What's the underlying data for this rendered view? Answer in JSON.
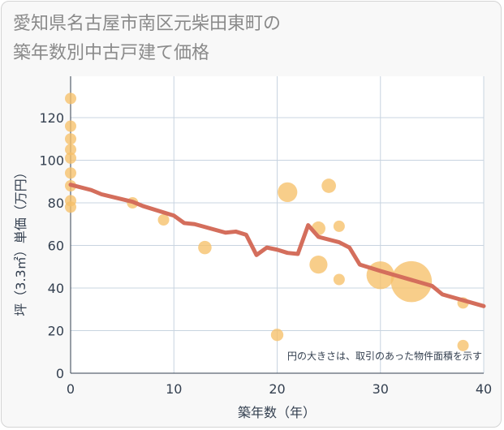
{
  "chart_data": {
    "type": "scatter",
    "title_lines": [
      "愛知県名古屋市南区元柴田東町の",
      "築年数別中古戸建て価格"
    ],
    "xlabel": "築年数（年）",
    "ylabel": "坪（3.3㎡）単価（万円）",
    "xlim": [
      0,
      40
    ],
    "ylim": [
      0,
      135
    ],
    "xticks": [
      0,
      10,
      20,
      30,
      40
    ],
    "yticks": [
      0,
      20,
      40,
      60,
      80,
      100,
      120
    ],
    "grid": true,
    "note": "円の大きさは、取引のあった物件面積を示す",
    "colors": {
      "bubble": "#f6c069",
      "line": "#d46e5c",
      "grid": "#c8d4e0",
      "text": "#333f4f"
    },
    "points": [
      {
        "x": 0,
        "y": 129,
        "size": 1
      },
      {
        "x": 0,
        "y": 116,
        "size": 1
      },
      {
        "x": 0,
        "y": 110,
        "size": 1
      },
      {
        "x": 0,
        "y": 105,
        "size": 1
      },
      {
        "x": 0,
        "y": 101,
        "size": 1
      },
      {
        "x": 0,
        "y": 94,
        "size": 1
      },
      {
        "x": 0,
        "y": 88,
        "size": 1
      },
      {
        "x": 0,
        "y": 81,
        "size": 1
      },
      {
        "x": 0,
        "y": 78,
        "size": 1
      },
      {
        "x": 6,
        "y": 80,
        "size": 1
      },
      {
        "x": 9,
        "y": 72,
        "size": 1
      },
      {
        "x": 13,
        "y": 59,
        "size": 1.4
      },
      {
        "x": 20,
        "y": 18,
        "size": 1.2
      },
      {
        "x": 21,
        "y": 85,
        "size": 3
      },
      {
        "x": 24,
        "y": 68,
        "size": 1.5
      },
      {
        "x": 24,
        "y": 51,
        "size": 2.5
      },
      {
        "x": 25,
        "y": 88,
        "size": 1.6
      },
      {
        "x": 26,
        "y": 69,
        "size": 1
      },
      {
        "x": 26,
        "y": 44,
        "size": 1
      },
      {
        "x": 30,
        "y": 46,
        "size": 6
      },
      {
        "x": 33,
        "y": 43,
        "size": 13
      },
      {
        "x": 38,
        "y": 33,
        "size": 1
      },
      {
        "x": 38,
        "y": 13,
        "size": 1
      }
    ],
    "trend": [
      {
        "x": 0,
        "y": 88.5
      },
      {
        "x": 2,
        "y": 86
      },
      {
        "x": 3,
        "y": 84
      },
      {
        "x": 6,
        "y": 80.5
      },
      {
        "x": 7,
        "y": 78.5
      },
      {
        "x": 10,
        "y": 74
      },
      {
        "x": 11,
        "y": 70.5
      },
      {
        "x": 12,
        "y": 70
      },
      {
        "x": 15,
        "y": 66
      },
      {
        "x": 16,
        "y": 66.5
      },
      {
        "x": 17,
        "y": 65
      },
      {
        "x": 18,
        "y": 55.5
      },
      {
        "x": 19,
        "y": 59
      },
      {
        "x": 20,
        "y": 58
      },
      {
        "x": 21,
        "y": 56.5
      },
      {
        "x": 22,
        "y": 56
      },
      {
        "x": 23,
        "y": 69.5
      },
      {
        "x": 24,
        "y": 64
      },
      {
        "x": 26,
        "y": 61.5
      },
      {
        "x": 27,
        "y": 59
      },
      {
        "x": 28,
        "y": 51
      },
      {
        "x": 30,
        "y": 48
      },
      {
        "x": 35,
        "y": 41
      },
      {
        "x": 36,
        "y": 37
      },
      {
        "x": 40,
        "y": 31.5
      }
    ]
  }
}
